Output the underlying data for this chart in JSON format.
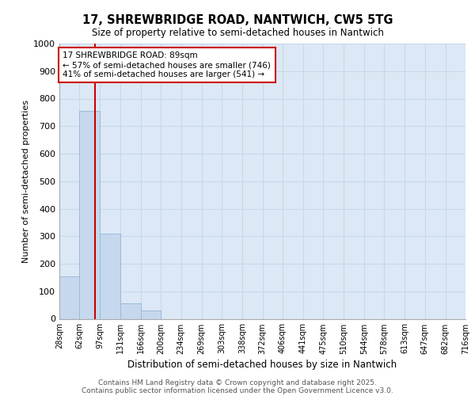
{
  "title1": "17, SHREWBRIDGE ROAD, NANTWICH, CW5 5TG",
  "title2": "Size of property relative to semi-detached houses in Nantwich",
  "xlabel": "Distribution of semi-detached houses by size in Nantwich",
  "ylabel": "Number of semi-detached properties",
  "bin_labels": [
    "28sqm",
    "62sqm",
    "97sqm",
    "131sqm",
    "166sqm",
    "200sqm",
    "234sqm",
    "269sqm",
    "303sqm",
    "338sqm",
    "372sqm",
    "406sqm",
    "441sqm",
    "475sqm",
    "510sqm",
    "544sqm",
    "578sqm",
    "613sqm",
    "647sqm",
    "682sqm",
    "716sqm"
  ],
  "bin_edges": [
    28,
    62,
    97,
    131,
    166,
    200,
    234,
    269,
    303,
    338,
    372,
    406,
    441,
    475,
    510,
    544,
    578,
    613,
    647,
    682,
    716
  ],
  "bar_heights": [
    155,
    755,
    308,
    57,
    30,
    0,
    0,
    0,
    0,
    0,
    0,
    0,
    0,
    0,
    0,
    0,
    0,
    0,
    0,
    0
  ],
  "bar_color": "#c5d8ee",
  "bar_edgecolor": "#9bbbd8",
  "property_size": 89,
  "red_line_color": "#cc0000",
  "annotation_line1": "17 SHREWBRIDGE ROAD: 89sqm",
  "annotation_line2": "← 57% of semi-detached houses are smaller (746)",
  "annotation_line3": "41% of semi-detached houses are larger (541) →",
  "ylim": [
    0,
    1000
  ],
  "yticks": [
    0,
    100,
    200,
    300,
    400,
    500,
    600,
    700,
    800,
    900,
    1000
  ],
  "grid_color": "#c8d8e8",
  "background_color": "#dce8f5",
  "footer1": "Contains HM Land Registry data © Crown copyright and database right 2025.",
  "footer2": "Contains public sector information licensed under the Open Government Licence v3.0."
}
